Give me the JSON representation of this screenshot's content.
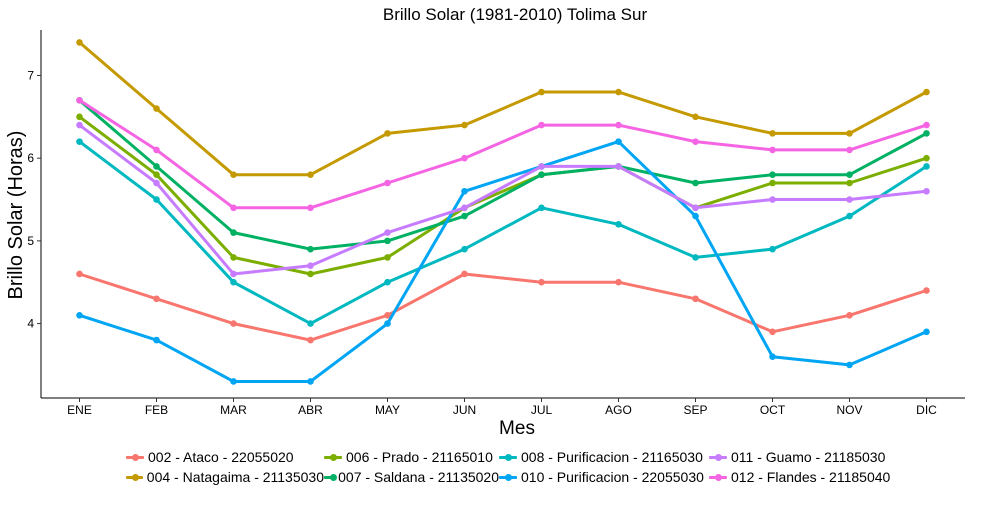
{
  "chart_data": {
    "type": "line",
    "title": "Brillo Solar (1981-2010)  Tolima Sur",
    "xlabel": "Mes",
    "ylabel": "Brillo Solar (Horas)",
    "categories": [
      "ENE",
      "FEB",
      "MAR",
      "ABR",
      "MAY",
      "JUN",
      "JUL",
      "AGO",
      "SEP",
      "OCT",
      "NOV",
      "DIC"
    ],
    "ylim": [
      3.1,
      7.55
    ],
    "yticks": [
      4,
      5,
      6,
      7
    ],
    "grid": false,
    "legend_position": "bottom",
    "series": [
      {
        "name": "002 - Ataco - 22055020",
        "color": "#F8766D",
        "values": [
          4.6,
          4.3,
          4.0,
          3.8,
          4.1,
          4.6,
          4.5,
          4.5,
          4.3,
          3.9,
          4.1,
          4.4
        ]
      },
      {
        "name": "004 - Natagaima - 21135030",
        "color": "#C49A00",
        "values": [
          7.4,
          6.6,
          5.8,
          5.8,
          6.3,
          6.4,
          6.8,
          6.8,
          6.5,
          6.3,
          6.3,
          6.8
        ]
      },
      {
        "name": "006 - Prado - 21165010",
        "color": "#7CAE00",
        "values": [
          6.5,
          5.8,
          4.8,
          4.6,
          4.8,
          5.4,
          5.8,
          5.9,
          5.4,
          5.7,
          5.7,
          6.0
        ]
      },
      {
        "name": "007 - Saldana - 21135020",
        "color": "#00B163",
        "values": [
          6.7,
          5.9,
          5.1,
          4.9,
          5.0,
          5.3,
          5.8,
          5.9,
          5.7,
          5.8,
          5.8,
          6.3
        ]
      },
      {
        "name": "008 - Purificacion - 21165030",
        "color": "#00B8C0",
        "values": [
          6.2,
          5.5,
          4.5,
          4.0,
          4.5,
          4.9,
          5.4,
          5.2,
          4.8,
          4.9,
          5.3,
          5.9
        ]
      },
      {
        "name": "010 - Purificacion - 22055030",
        "color": "#00A5F4",
        "values": [
          4.1,
          3.8,
          3.3,
          3.3,
          4.0,
          5.6,
          5.9,
          6.2,
          5.3,
          3.6,
          3.5,
          3.9
        ]
      },
      {
        "name": "011 - Guamo - 21185030",
        "color": "#C77CFF",
        "values": [
          6.4,
          5.7,
          4.6,
          4.7,
          5.1,
          5.4,
          5.9,
          5.9,
          5.4,
          5.5,
          5.5,
          5.6
        ]
      },
      {
        "name": "012 - Flandes - 21185040",
        "color": "#F564E3",
        "values": [
          6.7,
          6.1,
          5.4,
          5.4,
          5.7,
          6.0,
          6.4,
          6.4,
          6.2,
          6.1,
          6.1,
          6.4
        ]
      }
    ]
  }
}
